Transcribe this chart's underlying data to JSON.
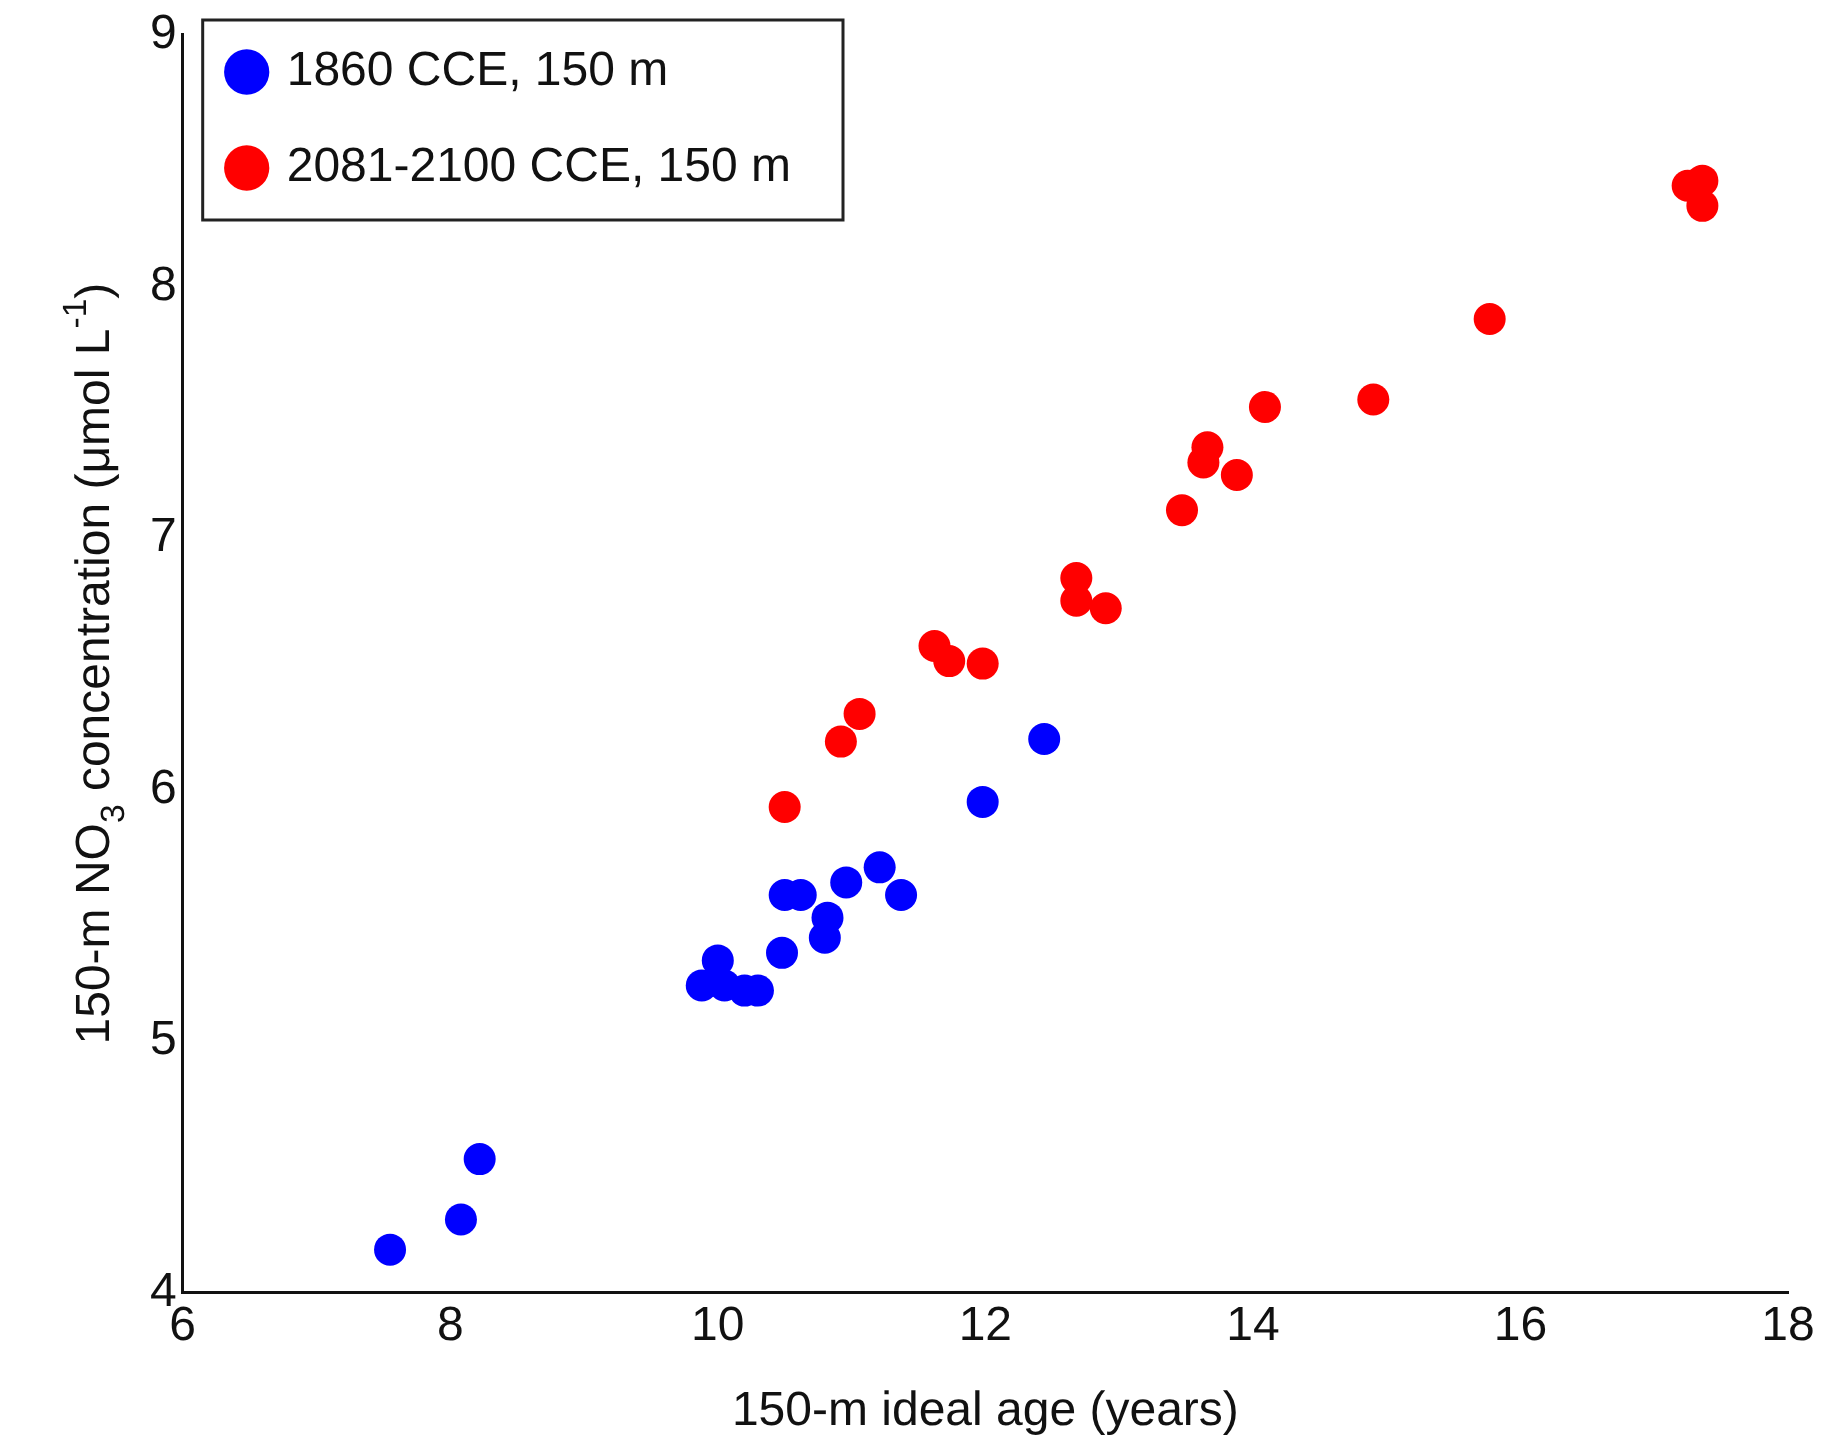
{
  "chart_data": {
    "type": "scatter",
    "xlabel": "150-m ideal age (years)",
    "ylabel": "150-m NO$_{3}$ concentration (μmol L$^{-1}$)",
    "xlim": [
      6,
      18
    ],
    "xticks": [
      6,
      8,
      10,
      12,
      14,
      16,
      18
    ],
    "ylim": [
      4,
      9
    ],
    "yticks": [
      4,
      5,
      6,
      7,
      8,
      9
    ],
    "grid": false,
    "legend": "top left",
    "marker": "circle",
    "series": [
      {
        "name": "1860 CCE, 150 m",
        "color": "#0000ff",
        "x": [
          7.55,
          8.08,
          8.22,
          9.88,
          10.0,
          10.05,
          10.2,
          10.3,
          10.48,
          10.5,
          10.62,
          10.8,
          10.82,
          10.96,
          11.21,
          11.37,
          11.98,
          12.44
        ],
        "values": [
          4.17,
          4.29,
          4.53,
          5.22,
          5.32,
          5.22,
          5.2,
          5.2,
          5.35,
          5.58,
          5.58,
          5.41,
          5.49,
          5.63,
          5.69,
          5.58,
          5.95,
          6.2
        ]
      },
      {
        "name": "2081-2100 CCE, 150 m",
        "color": "#ff0000",
        "x": [
          10.5,
          10.92,
          11.06,
          11.62,
          11.73,
          11.98,
          12.68,
          12.68,
          12.9,
          13.47,
          13.66,
          13.63,
          13.88,
          14.09,
          14.9,
          15.77,
          17.25,
          17.36,
          17.36
        ],
        "values": [
          5.93,
          6.19,
          6.3,
          6.57,
          6.51,
          6.5,
          6.84,
          6.75,
          6.72,
          7.11,
          7.36,
          7.3,
          7.25,
          7.52,
          7.55,
          7.87,
          8.4,
          8.42,
          8.32
        ]
      }
    ]
  }
}
